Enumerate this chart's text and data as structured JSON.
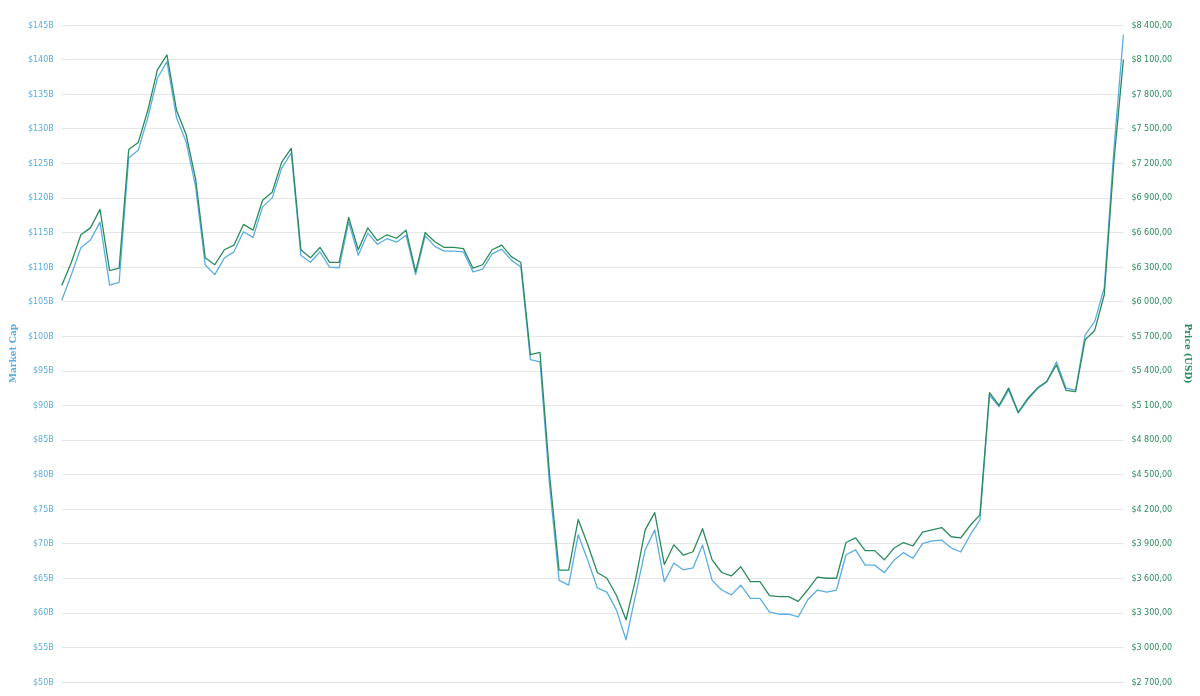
{
  "chart_data": {
    "type": "line",
    "ylabel": "Market Cap",
    "y2label": "Price (USD)",
    "categories": [
      null,
      null,
      null,
      null,
      null,
      null,
      null,
      null,
      null,
      null,
      null,
      null,
      null,
      null,
      null,
      null,
      null,
      null,
      null,
      null,
      null,
      null,
      null,
      null,
      null,
      null,
      null,
      null,
      null,
      null,
      null,
      null,
      null,
      null,
      null,
      null,
      null,
      null,
      null,
      null,
      null,
      null,
      null,
      null,
      null,
      null,
      null,
      null,
      null,
      null,
      null,
      null,
      null,
      null,
      null,
      null,
      null,
      null,
      null,
      null,
      null,
      null,
      null,
      null,
      null,
      null,
      null,
      null,
      null,
      null,
      null,
      null,
      null,
      null,
      null,
      null,
      null,
      null,
      null,
      null,
      null,
      null,
      null,
      null,
      null,
      null,
      null,
      null,
      null,
      null,
      null,
      null,
      null,
      null,
      null,
      null,
      null,
      null,
      null,
      null,
      null,
      null,
      null,
      null,
      null,
      null,
      null,
      null,
      null,
      null,
      null,
      null
    ],
    "series": [
      {
        "color": "#5aaee3",
        "values": [
          105.2,
          108.9,
          112.8,
          113.9,
          116.5,
          107.4,
          107.8,
          125.8,
          126.9,
          131.6,
          137.3,
          139.7,
          131.6,
          128.1,
          121.6,
          110.3,
          108.9,
          111.3,
          112.2,
          115.1,
          114.3,
          118.7,
          120.0,
          124.3,
          126.5,
          111.7,
          110.7,
          112.2,
          110.0,
          109.9,
          116.5,
          111.7,
          114.9,
          113.3,
          114.1,
          113.6,
          114.6,
          108.9,
          114.5,
          113.0,
          112.3,
          112.3,
          112.2,
          109.3,
          109.7,
          111.9,
          112.6,
          111.0,
          110.0,
          96.6,
          96.3,
          78.5,
          64.7,
          64.0,
          71.3,
          67.6,
          63.6,
          63.0,
          60.4,
          56.1,
          62.6,
          69.1,
          72.0,
          64.5,
          67.2,
          66.2,
          66.5,
          69.8,
          64.7,
          63.3,
          62.6,
          64.0,
          62.1,
          62.1,
          60.1,
          59.8,
          59.8,
          59.4,
          61.9,
          63.3,
          63.0,
          63.3,
          68.4,
          69.1,
          66.9,
          66.9,
          65.8,
          67.6,
          68.7,
          67.9,
          70.0,
          70.4,
          70.5,
          69.4,
          68.8,
          71.3,
          73.4,
          91.5,
          89.8,
          92.2,
          88.9,
          90.8,
          92.4,
          93.4,
          96.3,
          92.5,
          92.2,
          100.2,
          102.1,
          107.0,
          126.9,
          143.6
        ]
      },
      {
        "color": "#2a8c5c",
        "axis": "y2",
        "values": [
          6140,
          6340,
          6580,
          6640,
          6800,
          6270,
          6290,
          7320,
          7380,
          7660,
          8010,
          8140,
          7660,
          7450,
          7060,
          6380,
          6320,
          6450,
          6490,
          6670,
          6620,
          6880,
          6950,
          7210,
          7330,
          6450,
          6380,
          6470,
          6340,
          6340,
          6730,
          6450,
          6640,
          6530,
          6580,
          6550,
          6620,
          6260,
          6600,
          6520,
          6470,
          6470,
          6460,
          6290,
          6320,
          6450,
          6490,
          6390,
          6340,
          5540,
          5560,
          4500,
          3670,
          3670,
          4110,
          3890,
          3650,
          3600,
          3450,
          3240,
          3590,
          4020,
          4170,
          3720,
          3890,
          3800,
          3830,
          4030,
          3760,
          3650,
          3620,
          3700,
          3570,
          3570,
          3450,
          3440,
          3440,
          3400,
          3500,
          3610,
          3600,
          3600,
          3910,
          3950,
          3840,
          3840,
          3760,
          3860,
          3910,
          3880,
          4000,
          4020,
          4040,
          3960,
          3950,
          4060,
          4150,
          5210,
          5100,
          5250,
          5040,
          5160,
          5250,
          5310,
          5450,
          5230,
          5220,
          5670,
          5750,
          6060,
          7210,
          8100
        ]
      }
    ],
    "ylim": [
      50,
      145
    ],
    "yticks": [
      {
        "value": 50,
        "label": "$50B"
      },
      {
        "value": 55,
        "label": "$55B"
      },
      {
        "value": 60,
        "label": "$60B"
      },
      {
        "value": 65,
        "label": "$65B"
      },
      {
        "value": 70,
        "label": "$70B"
      },
      {
        "value": 75,
        "label": "$75B"
      },
      {
        "value": 80,
        "label": "$80B"
      },
      {
        "value": 85,
        "label": "$85B"
      },
      {
        "value": 90,
        "label": "$90B"
      },
      {
        "value": 95,
        "label": "$95B"
      },
      {
        "value": 100,
        "label": "$100B"
      },
      {
        "value": 105,
        "label": "$105B"
      },
      {
        "value": 110,
        "label": "$110B"
      },
      {
        "value": 115,
        "label": "$115B"
      },
      {
        "value": 120,
        "label": "$120B"
      },
      {
        "value": 125,
        "label": "$125B"
      },
      {
        "value": 130,
        "label": "$130B"
      },
      {
        "value": 135,
        "label": "$135B"
      },
      {
        "value": 140,
        "label": "$140B"
      },
      {
        "value": 145,
        "label": "$145B"
      }
    ],
    "y2lim": [
      2700,
      8400
    ],
    "y2ticks": [
      {
        "value": 2700,
        "label": "$2 700,00"
      },
      {
        "value": 3000,
        "label": "$3 000,00"
      },
      {
        "value": 3300,
        "label": "$3 300,00"
      },
      {
        "value": 3600,
        "label": "$3 600,00"
      },
      {
        "value": 3900,
        "label": "$3 900,00"
      },
      {
        "value": 4200,
        "label": "$4 200,00"
      },
      {
        "value": 4500,
        "label": "$4 500,00"
      },
      {
        "value": 4800,
        "label": "$4 800,00"
      },
      {
        "value": 5100,
        "label": "$5 100,00"
      },
      {
        "value": 5400,
        "label": "$5 400,00"
      },
      {
        "value": 5700,
        "label": "$5 700,00"
      },
      {
        "value": 6000,
        "label": "$6 000,00"
      },
      {
        "value": 6300,
        "label": "$6 300,00"
      },
      {
        "value": 6600,
        "label": "$6 600,00"
      },
      {
        "value": 6900,
        "label": "$6 900,00"
      },
      {
        "value": 7200,
        "label": "$7 200,00"
      },
      {
        "value": 7500,
        "label": "$7 500,00"
      },
      {
        "value": 7800,
        "label": "$7 800,00"
      },
      {
        "value": 8100,
        "label": "$8 100,00"
      },
      {
        "value": 8400,
        "label": "$8 400,00"
      }
    ],
    "grid": "y"
  }
}
